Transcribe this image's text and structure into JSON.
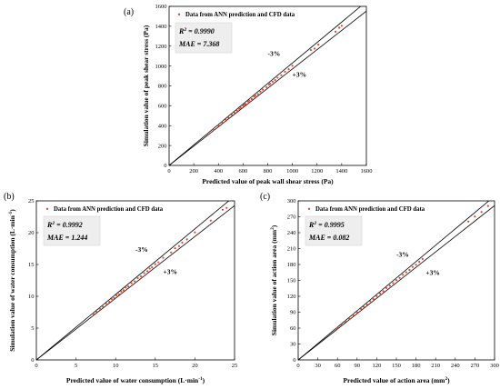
{
  "chart_data": [
    {
      "type": "scatter",
      "panel_label": "(a)",
      "xlabel": "Predicted value of peak wall shear stress (Pa)",
      "ylabel": "Simulation value of peak shear stress (Pa)",
      "xlim": [
        0,
        1600
      ],
      "ylim": [
        0,
        1600
      ],
      "xticks": [
        "0",
        "200",
        "400",
        "600",
        "800",
        "1000",
        "1200",
        "1400",
        "1600"
      ],
      "yticks": [
        "0",
        "200",
        "400",
        "600",
        "800",
        "1000",
        "1200",
        "1400",
        "1600"
      ],
      "legend": "Data from ANN prediction and CFD data",
      "r2_prefix": "R",
      "r2_sup": "2",
      "r2_value": " = 0.9990",
      "mae_text": "MAE = 7.368",
      "band_upper": "-3%",
      "band_lower": "+3%",
      "band_upper_pos": [
        800,
        1100
      ],
      "band_lower_pos": [
        1000,
        890
      ],
      "band_ratio": 0.03,
      "point_color": "#e8462a",
      "series": [
        {
          "x": [
            310,
            360,
            400,
            430,
            460,
            480,
            510,
            530,
            550,
            570,
            580,
            600,
            610,
            620,
            640,
            650,
            670,
            690,
            700,
            720,
            740,
            760,
            790,
            810,
            820,
            840,
            860,
            880,
            910,
            940,
            970,
            1000,
            1150,
            1180,
            1210,
            1350,
            1380,
            1400
          ],
          "y": [
            312,
            358,
            402,
            432,
            458,
            482,
            508,
            532,
            552,
            568,
            582,
            602,
            612,
            618,
            642,
            652,
            668,
            692,
            702,
            718,
            742,
            762,
            788,
            812,
            822,
            842,
            858,
            882,
            908,
            942,
            968,
            1002,
            1160,
            1175,
            1215,
            1345,
            1385,
            1405
          ]
        }
      ]
    },
    {
      "type": "scatter",
      "panel_label": "(b)",
      "xlabel_main": "Predicted value of water consumption (L·min",
      "xlabel_sup": "-1",
      "xlabel_end": ")",
      "ylabel_main": "Simulation value of water consumption (L·min",
      "ylabel_sup": "-1",
      "ylabel_end": ")",
      "xlim": [
        0,
        25
      ],
      "ylim": [
        0,
        25
      ],
      "xticks": [
        "0",
        "5",
        "10",
        "15",
        "20",
        "25"
      ],
      "yticks": [
        "0",
        "5",
        "10",
        "15",
        "20",
        "25"
      ],
      "legend": "Data from ANN prediction and CFD data",
      "r2_prefix": "R",
      "r2_sup": "2",
      "r2_value": " = 0.9992",
      "mae_text": "MAE = 1.244",
      "band_upper": "-3%",
      "band_lower": "+3%",
      "band_upper_pos": [
        12.5,
        17
      ],
      "band_lower_pos": [
        16,
        13.5
      ],
      "band_ratio": 0.03,
      "point_color": "#e8462a",
      "series": [
        {
          "x": [
            7.2,
            7.6,
            8.0,
            8.4,
            8.8,
            9.2,
            9.5,
            9.8,
            10.1,
            10.4,
            10.7,
            11.0,
            11.3,
            11.6,
            12.0,
            12.4,
            12.8,
            13.2,
            13.6,
            14.0,
            14.3,
            14.6,
            15.0,
            15.4,
            16.0,
            17.0,
            17.5,
            18.0,
            18.4,
            19.0,
            20.0,
            22.0,
            23.5,
            24.0
          ],
          "y": [
            7.25,
            7.55,
            8.05,
            8.35,
            8.85,
            9.15,
            9.55,
            9.75,
            10.15,
            10.35,
            10.75,
            10.95,
            11.35,
            11.55,
            12.05,
            12.35,
            12.85,
            13.15,
            13.65,
            13.95,
            14.35,
            14.55,
            15.05,
            15.35,
            16.05,
            16.9,
            17.55,
            17.9,
            18.45,
            18.95,
            20.05,
            21.9,
            23.6,
            23.9
          ]
        }
      ]
    },
    {
      "type": "scatter",
      "panel_label": "(c)",
      "xlabel_main": "Predicted value of action area (mm",
      "xlabel_sup": "2",
      "xlabel_end": ")",
      "ylabel_main": "Simulation value of action area (mm",
      "ylabel_sup": "2",
      "ylabel_end": ")",
      "xlim": [
        0,
        300
      ],
      "ylim": [
        0,
        300
      ],
      "xticks": [
        "0",
        "30",
        "60",
        "90",
        "120",
        "150",
        "180",
        "210",
        "240",
        "270",
        "300"
      ],
      "yticks": [
        "0",
        "30",
        "60",
        "90",
        "120",
        "150",
        "180",
        "210",
        "240",
        "270",
        "300"
      ],
      "legend": "Data from ANN prediction and CFD data",
      "r2_prefix": "R",
      "r2_sup": "2",
      "r2_value": " = 0.9995",
      "mae_text": "MAE = 0.082",
      "band_upper": "-3%",
      "band_lower": "+3%",
      "band_upper_pos": [
        150,
        195
      ],
      "band_lower_pos": [
        195,
        160
      ],
      "band_ratio": 0.03,
      "point_color": "#e8462a",
      "series": [
        {
          "x": [
            60,
            66,
            72,
            78,
            84,
            90,
            96,
            100,
            105,
            110,
            115,
            120,
            125,
            130,
            135,
            140,
            145,
            150,
            155,
            160,
            165,
            170,
            175,
            180,
            185,
            190,
            260,
            270,
            280,
            290
          ],
          "y": [
            60.5,
            65.8,
            72.4,
            77.6,
            84.5,
            89.6,
            96.3,
            100.4,
            104.6,
            110.5,
            114.7,
            120.3,
            125.4,
            129.7,
            135.5,
            140.2,
            144.8,
            150.4,
            154.7,
            160.5,
            165.3,
            169.8,
            175.4,
            179.6,
            185.2,
            190.5,
            261,
            270.5,
            279,
            290.4
          ]
        }
      ]
    }
  ]
}
